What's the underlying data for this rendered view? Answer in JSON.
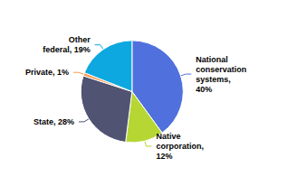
{
  "chart_data": {
    "type": "pie",
    "categories": [
      "National\nconservation\nsystems,\n40%",
      "Native\ncorporation,\n12%",
      "State, 28%",
      "Private, 1%",
      "Other\nfederal, 19%"
    ],
    "values": [
      40,
      12,
      28,
      1,
      19
    ]
  }
}
